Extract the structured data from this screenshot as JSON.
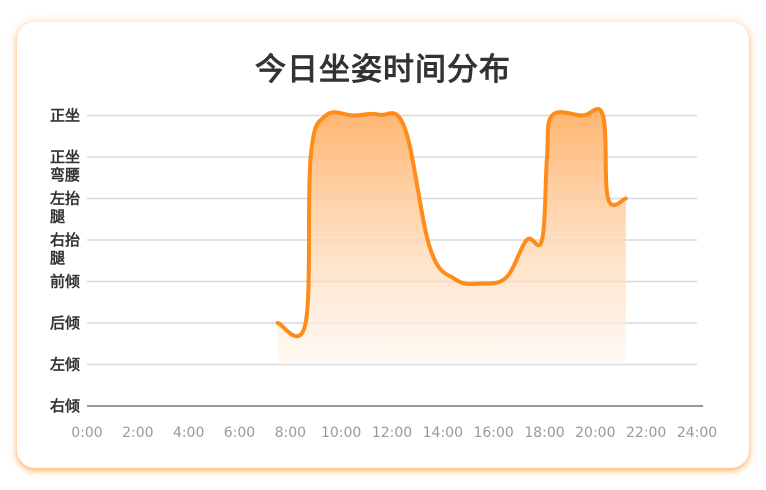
{
  "chart_data": {
    "type": "area",
    "title": "今日坐姿时间分布",
    "x_ticks": [
      "0:00",
      "2:00",
      "4:00",
      "6:00",
      "8:00",
      "10:00",
      "12:00",
      "14:00",
      "16:00",
      "18:00",
      "20:00",
      "22:00",
      "24:00"
    ],
    "xlim": [
      0,
      24
    ],
    "y_categories": [
      "右倾",
      "左倾",
      "后倾",
      "前倾",
      "右抬腿",
      "左抬腿",
      "正坐弯腰",
      "正坐"
    ],
    "y_tick_lines": [
      [
        "右倾"
      ],
      [
        "左倾"
      ],
      [
        "后倾"
      ],
      [
        "前倾"
      ],
      [
        "右抬",
        "腿"
      ],
      [
        "左抬",
        "腿"
      ],
      [
        "正坐",
        "弯腰"
      ],
      [
        "正坐"
      ]
    ],
    "series": [
      {
        "x": [
          7.5,
          8.6,
          8.8,
          9.4,
          10.5,
          11.5,
          12.5,
          13.5,
          14.5,
          15.5,
          16.5,
          17.3,
          17.9,
          18.1,
          18.3,
          19.5,
          20.3,
          20.5,
          21.2
        ],
        "y": [
          2,
          2,
          6,
          7,
          7,
          7.02,
          6.7,
          3.8,
          3.05,
          2.95,
          3.1,
          4,
          4,
          6,
          7,
          7,
          7,
          5,
          5
        ]
      }
    ],
    "colors": {
      "line": "#FF8C1A",
      "fill_top": "#FFB066",
      "fill_bottom": "#FFF5EC",
      "grid": "#D9D9D9",
      "axis": "#999999"
    },
    "grid": true,
    "legend": "none"
  }
}
